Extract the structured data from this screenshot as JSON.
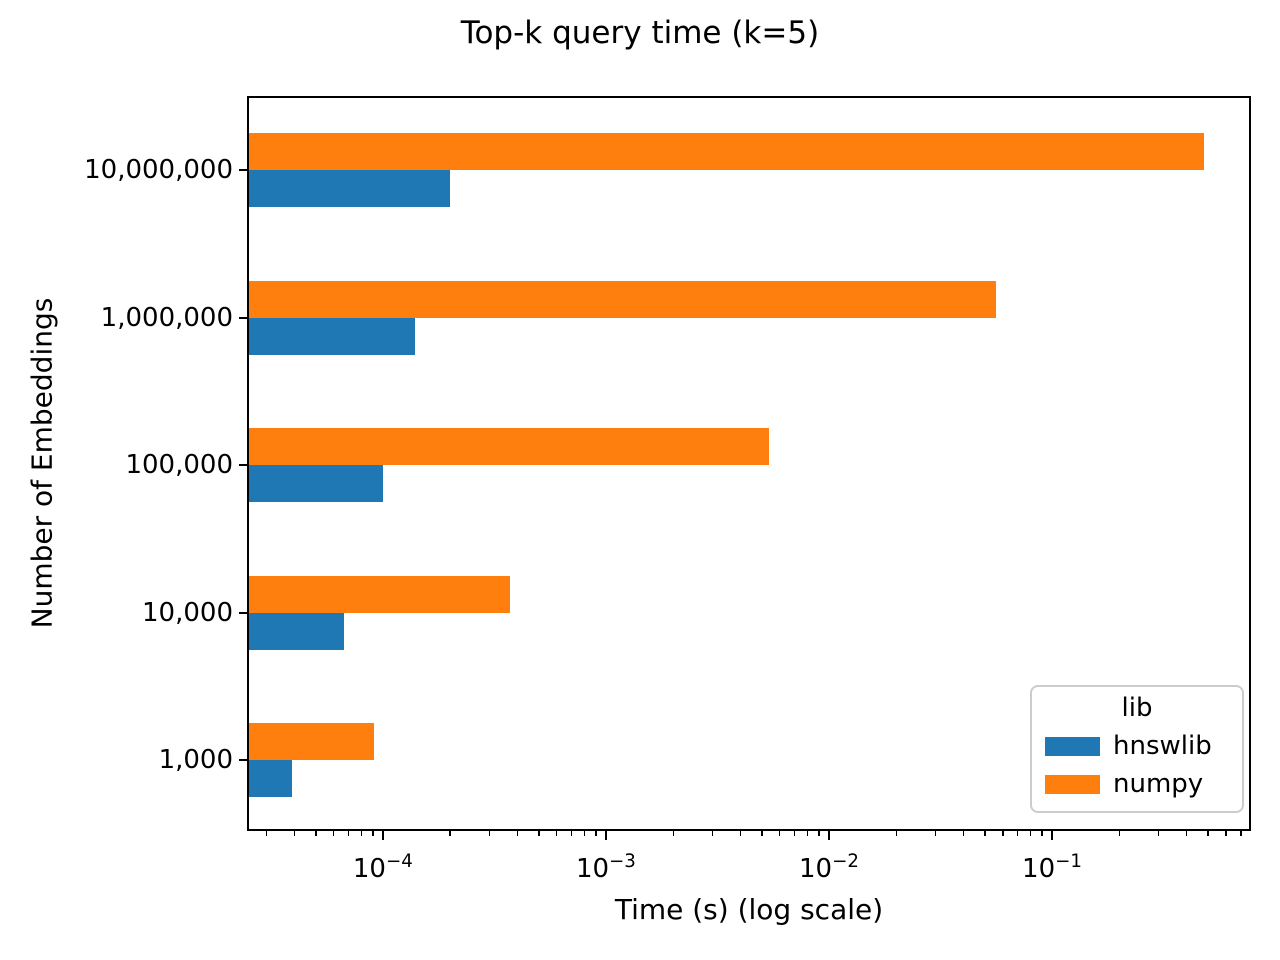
{
  "chart_data": {
    "type": "bar",
    "orientation": "horizontal",
    "title": "Top-k query time (k=5)",
    "xlabel": "Time (s) (log scale)",
    "ylabel": "Number of Embeddings",
    "x_scale": "log",
    "xlim": [
      2.46e-05,
      0.78
    ],
    "x_major_tick_exponents": [
      -4,
      -3,
      -2,
      -1
    ],
    "categories": [
      "1,000",
      "10,000",
      "100,000",
      "1,000,000",
      "10,000,000"
    ],
    "category_order": "bottom-to-top",
    "series": [
      {
        "name": "hnswlib",
        "color": "#1f77b4",
        "values": [
          3.9e-05,
          6.7e-05,
          0.0001,
          0.00014,
          0.0002
        ]
      },
      {
        "name": "numpy",
        "color": "#ff7f0e",
        "values": [
          9.1e-05,
          0.00037,
          0.0054,
          0.056,
          0.48
        ]
      }
    ],
    "legend": {
      "title": "lib",
      "position": "lower right"
    },
    "grid": false,
    "frame_color": "#000000",
    "background_color": "#ffffff"
  }
}
